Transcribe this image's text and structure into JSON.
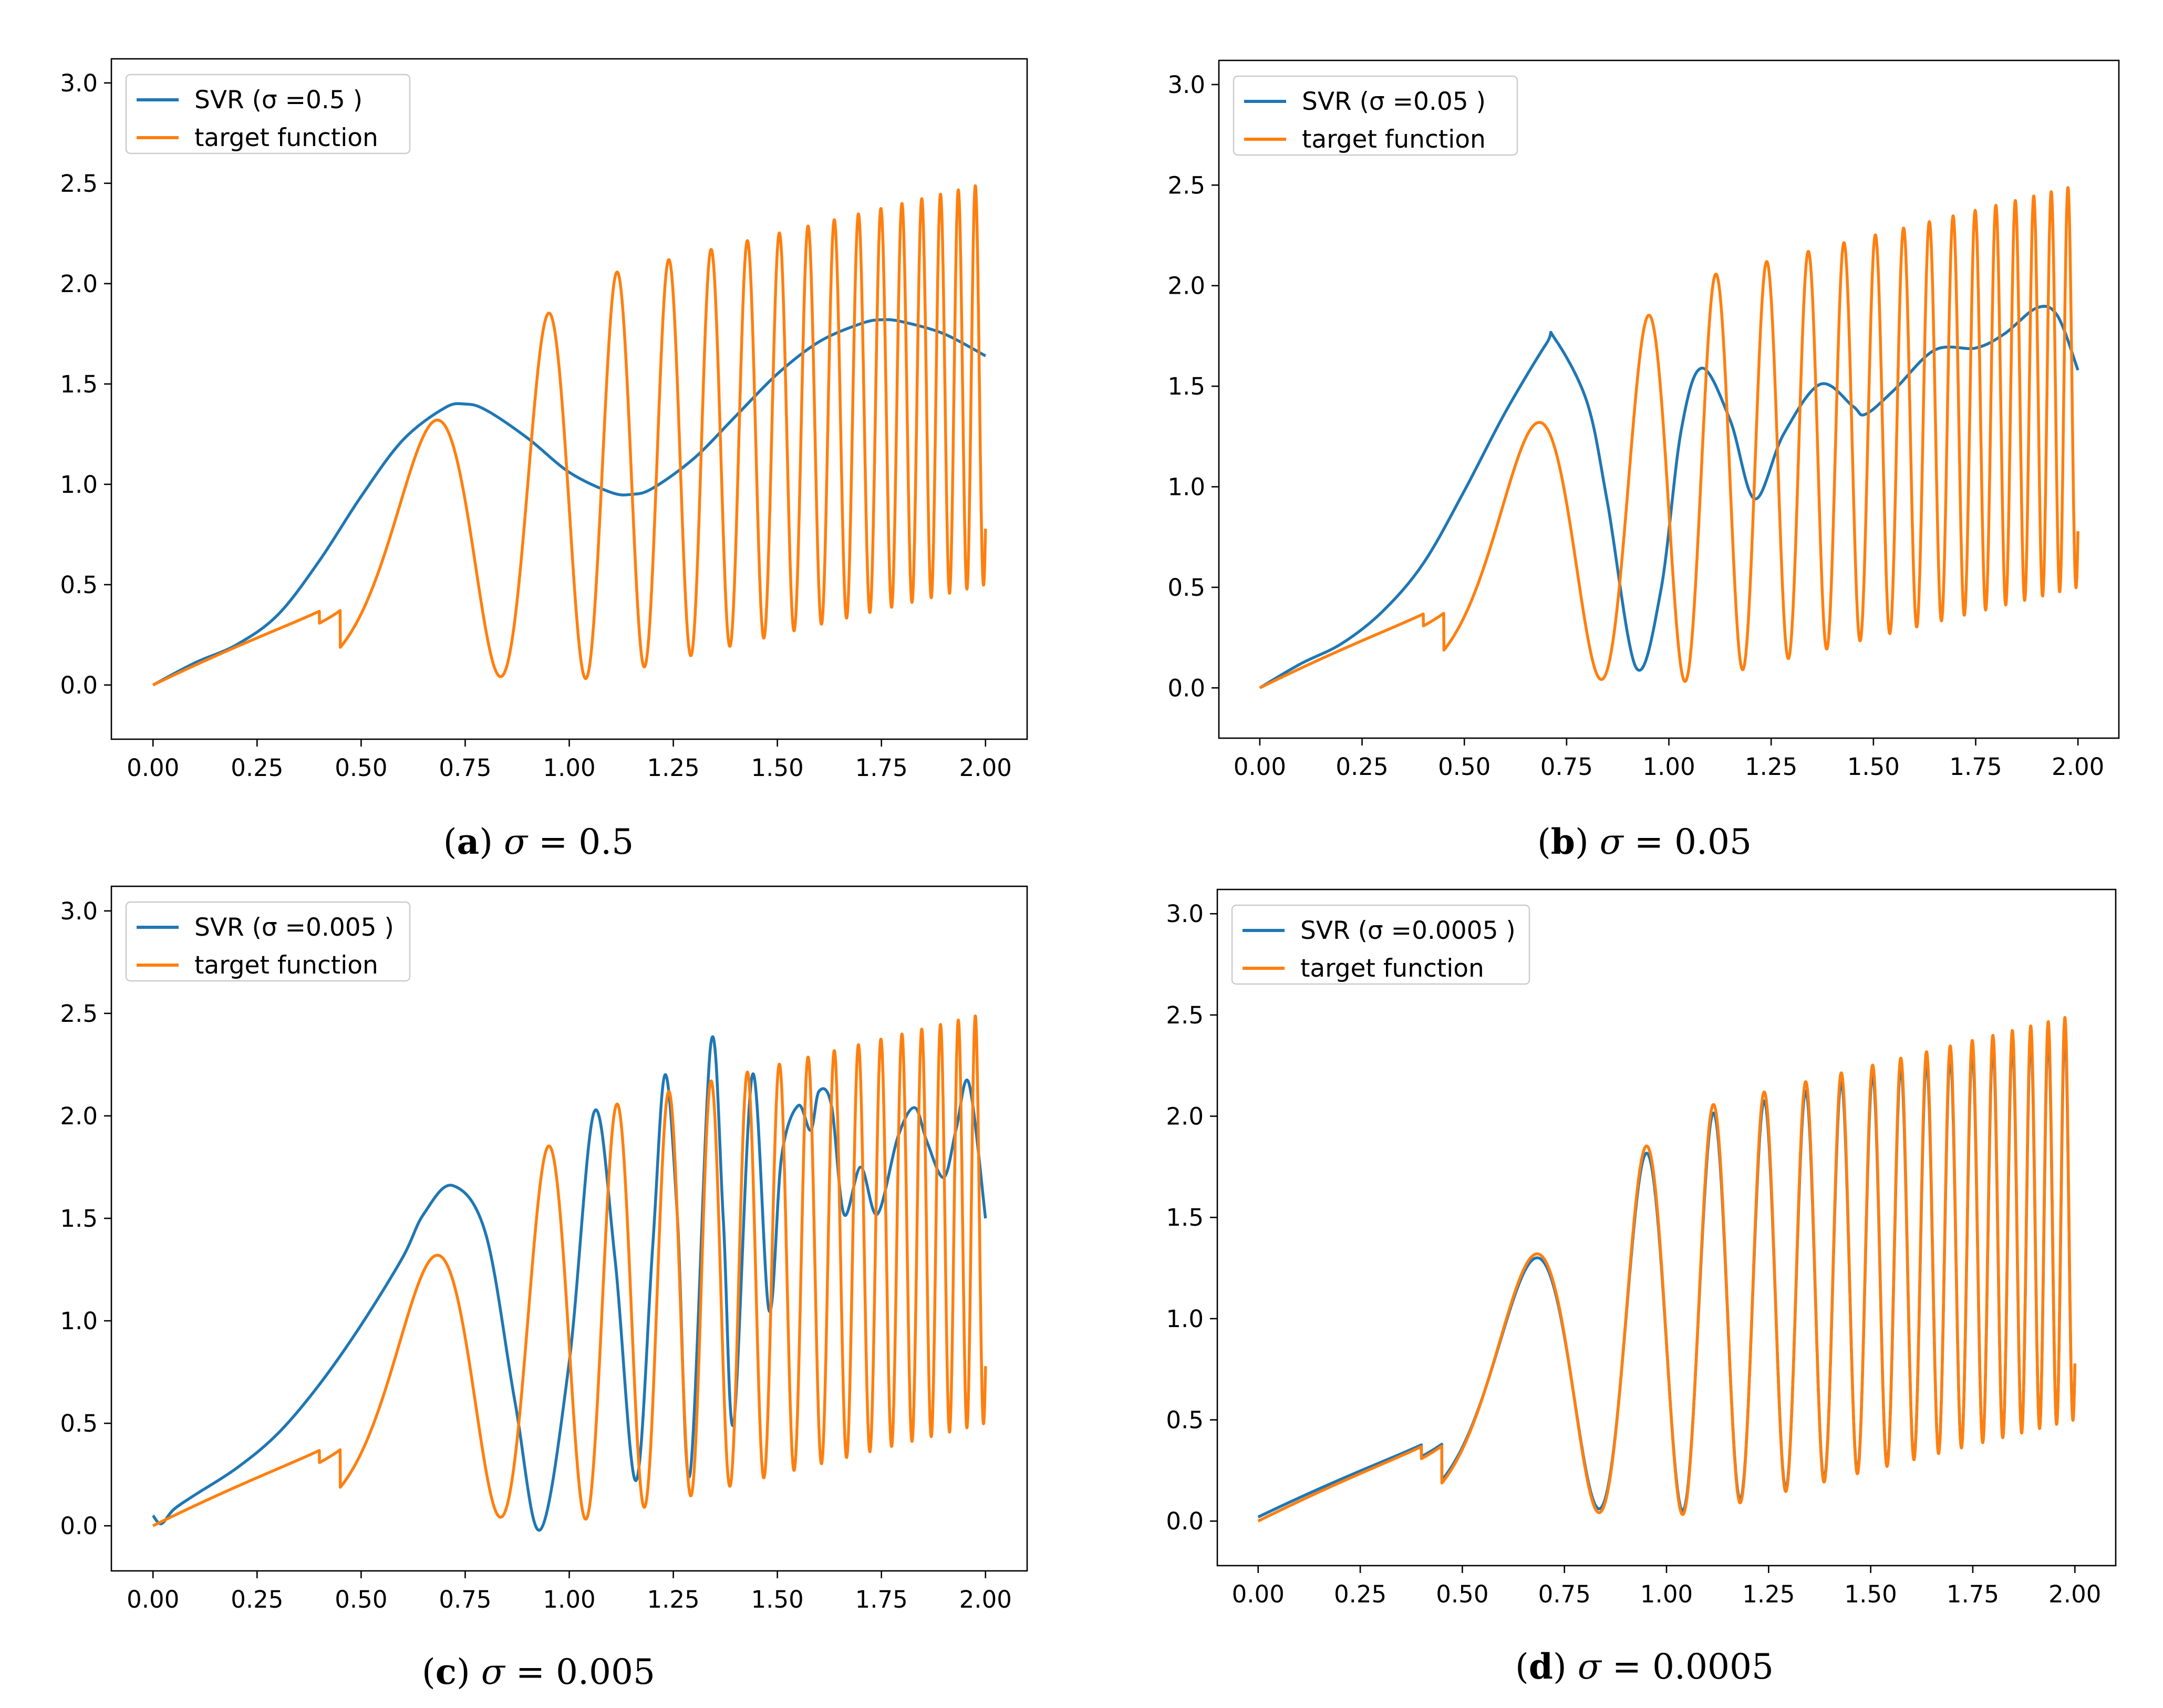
{
  "colors": {
    "svr": "#1f77b4",
    "target": "#ff7f0e",
    "axes": "#000000",
    "legend_border": "#cccccc"
  },
  "chart_data": [
    {
      "type": "line",
      "panel": "a",
      "caption": {
        "letter": "a",
        "symbol": "σ",
        "equals": " = ",
        "value": "0.5"
      },
      "xlim": [
        -0.1,
        2.1
      ],
      "ylim": [
        -0.27,
        3.12
      ],
      "x_ticks": [
        "0.00",
        "0.25",
        "0.50",
        "0.75",
        "1.00",
        "1.25",
        "1.50",
        "1.75",
        "2.00"
      ],
      "y_ticks": [
        "0.0",
        "0.5",
        "1.0",
        "1.5",
        "2.0",
        "2.5",
        "3.0"
      ],
      "grid": false,
      "legend_position": "top-left",
      "series": [
        {
          "name": "SVR (σ =0.5 )",
          "role": "svr",
          "x": [
            0.0,
            0.1,
            0.2,
            0.3,
            0.4,
            0.5,
            0.6,
            0.7,
            0.75,
            0.8,
            0.9,
            1.0,
            1.1,
            1.15,
            1.2,
            1.3,
            1.4,
            1.5,
            1.6,
            1.7,
            1.75,
            1.8,
            1.9,
            2.0
          ],
          "y": [
            0.0,
            0.11,
            0.2,
            0.35,
            0.62,
            0.94,
            1.22,
            1.38,
            1.4,
            1.37,
            1.23,
            1.06,
            0.96,
            0.95,
            0.98,
            1.13,
            1.34,
            1.55,
            1.71,
            1.8,
            1.82,
            1.81,
            1.75,
            1.64
          ]
        },
        {
          "name": "target function",
          "role": "target"
        }
      ]
    },
    {
      "type": "line",
      "panel": "b",
      "caption": {
        "letter": "b",
        "symbol": "σ",
        "equals": " = ",
        "value": "0.05"
      },
      "xlim": [
        -0.1,
        2.1
      ],
      "ylim": [
        -0.25,
        3.12
      ],
      "x_ticks": [
        "0.00",
        "0.25",
        "0.50",
        "0.75",
        "1.00",
        "1.25",
        "1.50",
        "1.75",
        "2.00"
      ],
      "y_ticks": [
        "0.0",
        "0.5",
        "1.0",
        "1.5",
        "2.0",
        "2.5",
        "3.0"
      ],
      "grid": false,
      "legend_position": "top-left",
      "series": [
        {
          "name": "SVR (σ =0.05 )",
          "role": "svr",
          "x": [
            0.0,
            0.1,
            0.2,
            0.3,
            0.4,
            0.5,
            0.6,
            0.7,
            0.72,
            0.8,
            0.85,
            0.92,
            0.98,
            1.03,
            1.08,
            1.15,
            1.21,
            1.28,
            1.37,
            1.45,
            1.48,
            1.55,
            1.65,
            1.75,
            1.82,
            1.9,
            1.95,
            2.0
          ],
          "y": [
            0.0,
            0.12,
            0.22,
            0.38,
            0.62,
            0.98,
            1.37,
            1.71,
            1.74,
            1.42,
            0.92,
            0.1,
            0.48,
            1.28,
            1.59,
            1.33,
            0.94,
            1.26,
            1.51,
            1.4,
            1.36,
            1.48,
            1.68,
            1.69,
            1.76,
            1.89,
            1.85,
            1.58
          ]
        },
        {
          "name": "target function",
          "role": "target"
        }
      ]
    },
    {
      "type": "line",
      "panel": "c",
      "caption": {
        "letter": "c",
        "symbol": "σ",
        "equals": " = ",
        "value": "0.005"
      },
      "xlim": [
        -0.1,
        2.1
      ],
      "ylim": [
        -0.22,
        3.12
      ],
      "x_ticks": [
        "0.00",
        "0.25",
        "0.50",
        "0.75",
        "1.00",
        "1.25",
        "1.50",
        "1.75",
        "2.00"
      ],
      "y_ticks": [
        "0.0",
        "0.5",
        "1.0",
        "1.5",
        "2.0",
        "2.5",
        "3.0"
      ],
      "grid": false,
      "legend_position": "top-left",
      "series": [
        {
          "name": "SVR (σ =0.005 )",
          "role": "svr",
          "x": [
            0.0,
            0.02,
            0.05,
            0.1,
            0.2,
            0.3,
            0.4,
            0.5,
            0.6,
            0.65,
            0.72,
            0.8,
            0.87,
            0.93,
            1.0,
            1.06,
            1.11,
            1.16,
            1.2,
            1.23,
            1.26,
            1.29,
            1.34,
            1.37,
            1.395,
            1.44,
            1.48,
            1.51,
            1.55,
            1.58,
            1.6,
            1.63,
            1.66,
            1.7,
            1.74,
            1.79,
            1.83,
            1.86,
            1.9,
            1.93,
            1.96,
            2.0
          ],
          "y": [
            0.05,
            0.01,
            0.08,
            0.15,
            0.28,
            0.45,
            0.69,
            0.98,
            1.31,
            1.52,
            1.66,
            1.42,
            0.6,
            -0.02,
            0.8,
            2.02,
            1.3,
            0.22,
            1.35,
            2.2,
            1.5,
            0.25,
            2.35,
            1.5,
            0.5,
            2.2,
            1.05,
            1.8,
            2.05,
            1.93,
            2.12,
            2.05,
            1.52,
            1.75,
            1.52,
            1.9,
            2.04,
            1.87,
            1.7,
            1.94,
            2.16,
            1.5
          ]
        },
        {
          "name": "target function",
          "role": "target"
        }
      ]
    },
    {
      "type": "line",
      "panel": "d",
      "caption": {
        "letter": "d",
        "symbol": "σ",
        "equals": " = ",
        "value": "0.0005"
      },
      "xlim": [
        -0.1,
        2.1
      ],
      "ylim": [
        -0.22,
        3.12
      ],
      "x_ticks": [
        "0.00",
        "0.25",
        "0.50",
        "0.75",
        "1.00",
        "1.25",
        "1.50",
        "1.75",
        "2.00"
      ],
      "y_ticks": [
        "0.0",
        "0.5",
        "1.0",
        "1.5",
        "2.0",
        "2.5",
        "3.0"
      ],
      "grid": false,
      "legend_position": "top-left",
      "series": [
        {
          "name": "SVR (σ =0.0005 )",
          "role": "svr",
          "mode": "near_target"
        },
        {
          "name": "target function",
          "role": "target"
        }
      ]
    }
  ]
}
